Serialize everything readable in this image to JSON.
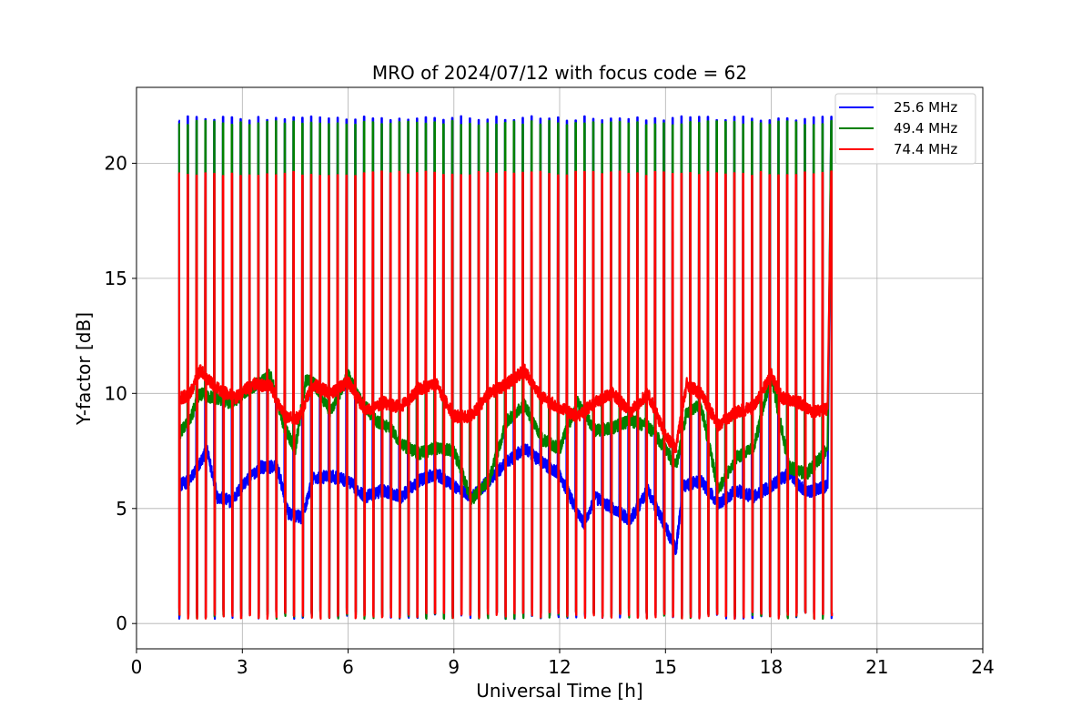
{
  "chart_data": {
    "type": "line",
    "title": "MRO of 2024/07/12 with focus code = 62",
    "xlabel": "Universal Time [h]",
    "ylabel": "Y-factor [dB]",
    "xlim": [
      0,
      24
    ],
    "ylim": [
      -1.1,
      23.3
    ],
    "xticks": [
      0,
      3,
      6,
      9,
      12,
      15,
      18,
      21,
      24
    ],
    "yticks": [
      0,
      5,
      10,
      15,
      20
    ],
    "grid": true,
    "legend_position": "top-right",
    "data_start_h": 1.2,
    "data_end_h": 19.6,
    "calibration_period_h": 0.25,
    "pulse_levels": {
      "bottom": 0.2,
      "tops": {
        "25.6 MHz": 21.95,
        "49.4 MHz": 21.75,
        "74.4 MHz": 19.55
      }
    },
    "series": [
      {
        "name": "25.6 MHz",
        "color": "#0000ff",
        "baseline": {
          "x": [
            1.2,
            1.5,
            2.0,
            2.3,
            2.7,
            3.0,
            3.5,
            4.0,
            4.3,
            4.7,
            5.0,
            5.5,
            6.0,
            6.5,
            7.0,
            7.5,
            8.0,
            8.5,
            9.0,
            9.5,
            10.0,
            10.5,
            11.0,
            11.5,
            12.0,
            12.3,
            12.7,
            13.0,
            13.5,
            14.0,
            14.5,
            15.0,
            15.3,
            15.5,
            16.0,
            16.5,
            17.0,
            17.5,
            18.0,
            18.5,
            19.0,
            19.6
          ],
          "y": [
            6.0,
            6.2,
            7.5,
            5.5,
            5.3,
            6.0,
            6.8,
            6.8,
            4.8,
            4.6,
            6.3,
            6.4,
            6.2,
            5.5,
            5.8,
            5.5,
            6.2,
            6.5,
            6.0,
            5.5,
            6.2,
            7.0,
            7.6,
            7.0,
            6.5,
            5.5,
            4.3,
            5.5,
            5.0,
            4.5,
            5.8,
            4.2,
            3.2,
            6.0,
            6.2,
            5.2,
            5.8,
            5.5,
            6.0,
            6.5,
            5.7,
            6.0
          ]
        }
      },
      {
        "name": "49.4 MHz",
        "color": "#008000",
        "baseline": {
          "x": [
            1.2,
            1.5,
            1.8,
            2.2,
            2.7,
            3.2,
            3.8,
            4.2,
            4.5,
            4.8,
            5.0,
            5.5,
            6.0,
            6.3,
            6.8,
            7.2,
            7.5,
            8.0,
            8.5,
            9.0,
            9.5,
            10.0,
            10.5,
            11.0,
            11.5,
            12.0,
            12.5,
            13.0,
            13.5,
            14.0,
            14.5,
            15.0,
            15.3,
            15.6,
            16.0,
            16.5,
            17.0,
            17.5,
            18.0,
            18.5,
            19.0,
            19.6
          ],
          "y": [
            8.2,
            8.8,
            10.0,
            9.8,
            9.6,
            10.2,
            10.8,
            8.5,
            7.6,
            10.6,
            10.5,
            9.2,
            10.8,
            9.8,
            8.8,
            8.5,
            7.8,
            7.4,
            7.6,
            7.5,
            5.4,
            6.2,
            8.8,
            9.5,
            8.0,
            7.6,
            9.6,
            8.4,
            8.5,
            8.8,
            8.6,
            7.6,
            6.8,
            9.2,
            9.5,
            5.8,
            7.2,
            7.6,
            10.8,
            6.8,
            6.5,
            7.6
          ]
        }
      },
      {
        "name": "74.4 MHz",
        "color": "#ff0000",
        "baseline": {
          "x": [
            1.2,
            1.5,
            1.8,
            2.3,
            2.8,
            3.3,
            3.8,
            4.2,
            4.6,
            5.0,
            5.5,
            6.0,
            6.5,
            7.0,
            7.5,
            8.0,
            8.5,
            9.0,
            9.5,
            10.0,
            10.5,
            11.0,
            11.5,
            12.0,
            12.5,
            13.0,
            13.5,
            14.0,
            14.5,
            15.0,
            15.3,
            15.6,
            16.0,
            16.5,
            17.0,
            17.5,
            18.0,
            18.3,
            18.8,
            19.2,
            19.6
          ],
          "y": [
            9.8,
            9.9,
            11.0,
            10.2,
            9.8,
            10.4,
            10.3,
            9.0,
            8.9,
            10.4,
            10.0,
            10.5,
            9.2,
            9.6,
            9.4,
            10.2,
            10.4,
            9.0,
            9.0,
            10.0,
            10.4,
            11.0,
            9.8,
            9.4,
            9.0,
            9.6,
            10.0,
            9.2,
            10.0,
            8.2,
            7.6,
            10.4,
            10.0,
            8.6,
            9.2,
            9.4,
            10.8,
            9.8,
            9.6,
            9.2,
            9.3
          ]
        }
      }
    ]
  }
}
